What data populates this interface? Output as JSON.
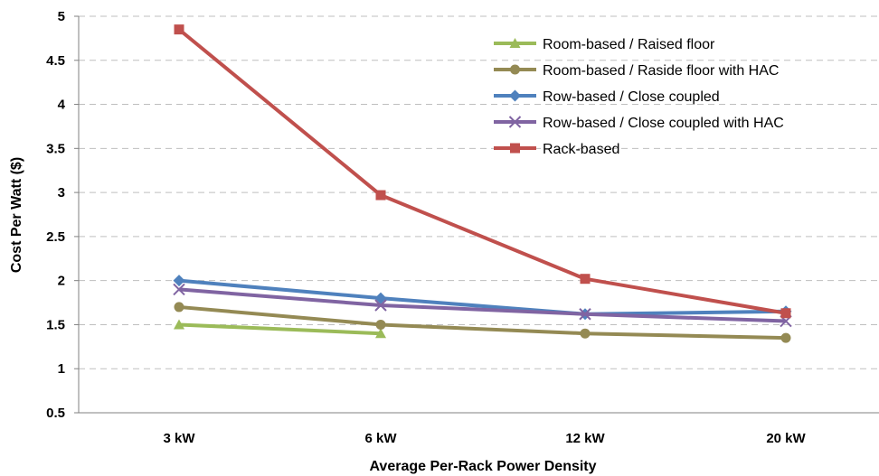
{
  "chart_data": {
    "type": "line",
    "title": "",
    "xlabel": "Average Per-Rack Power Density",
    "ylabel": "Cost Per Watt ($)",
    "categories": [
      "3 kW",
      "6 kW",
      "12 kW",
      "20 kW"
    ],
    "ylim": [
      0.5,
      5
    ],
    "yticks": [
      0.5,
      1,
      1.5,
      2,
      2.5,
      3,
      3.5,
      4,
      4.5,
      5
    ],
    "ytick_labels": [
      "0.5",
      "1",
      "1.5",
      "2",
      "2.5",
      "3",
      "3.5",
      "4",
      "4.5",
      "5"
    ],
    "grid": "horizontal dashed",
    "legend_position": "top-right",
    "series": [
      {
        "name": "Room-based / Raised floor",
        "color": "#9bbb59",
        "marker": "triangle",
        "values": [
          1.5,
          1.4,
          null,
          null
        ]
      },
      {
        "name": "Room-based / Raside floor with HAC",
        "color": "#948a54",
        "marker": "circle",
        "values": [
          1.7,
          1.5,
          1.4,
          1.35
        ]
      },
      {
        "name": "Row-based / Close coupled",
        "color": "#4f81bd",
        "marker": "diamond",
        "values": [
          2.0,
          1.8,
          1.62,
          1.65
        ]
      },
      {
        "name": "Row-based / Close coupled with HAC",
        "color": "#8064a2",
        "marker": "x",
        "values": [
          1.9,
          1.72,
          1.62,
          1.54
        ]
      },
      {
        "name": "Rack-based",
        "color": "#c0504d",
        "marker": "square",
        "values": [
          4.85,
          2.97,
          2.02,
          1.63
        ]
      }
    ]
  }
}
